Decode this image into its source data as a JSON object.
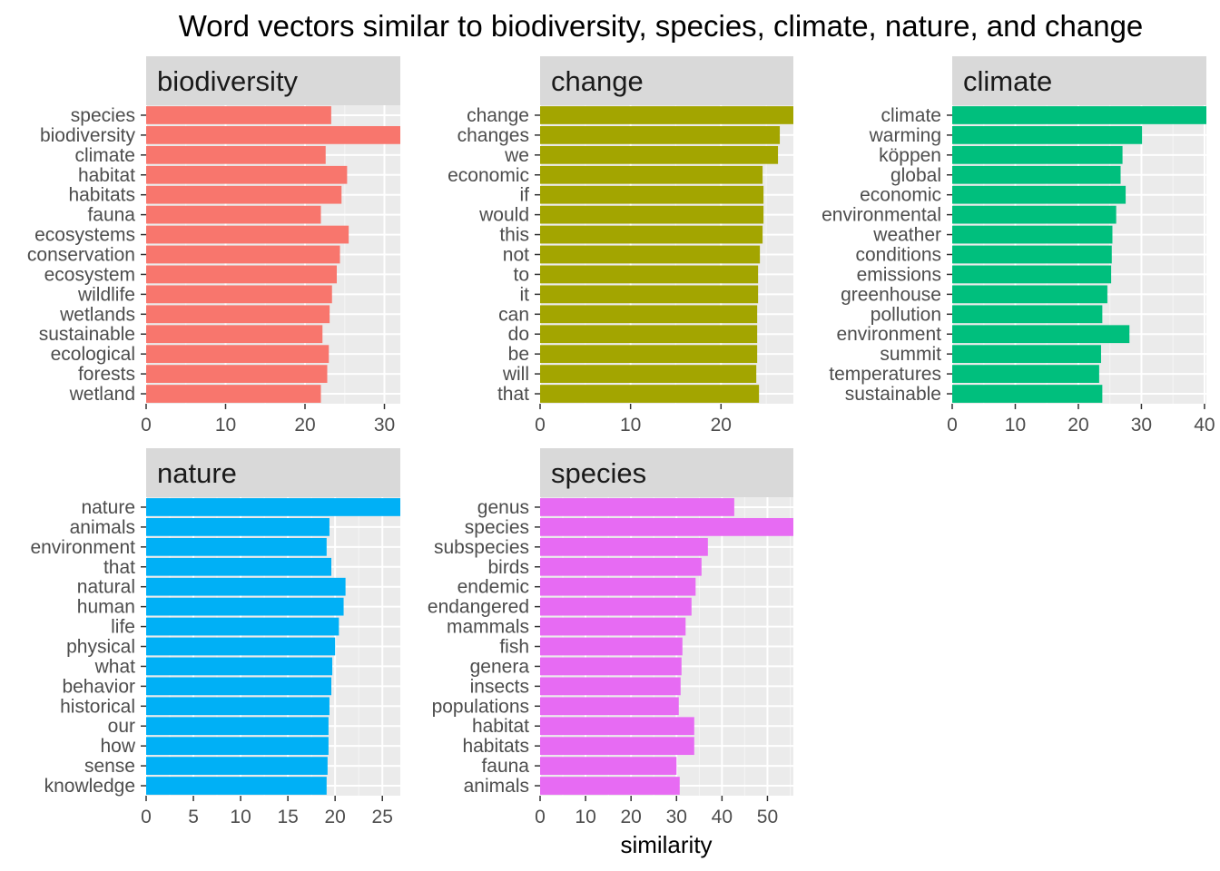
{
  "chart_data": {
    "type": "bar",
    "orientation": "horizontal",
    "title": "Word vectors similar to biodiversity, species, climate, nature, and change",
    "xlabel": "similarity",
    "ylabel": "",
    "grid": true,
    "panels": [
      {
        "name": "biodiversity",
        "color": "#F8766D",
        "xlim": [
          0,
          32
        ],
        "ticks": [
          0,
          10,
          20,
          30
        ],
        "categories": [
          "species",
          "biodiversity",
          "climate",
          "habitat",
          "habitats",
          "fauna",
          "ecosystems",
          "conservation",
          "ecosystem",
          "wildlife",
          "wetlands",
          "sustainable",
          "ecological",
          "forests",
          "wetland"
        ],
        "values": [
          23.3,
          32.0,
          22.6,
          25.3,
          24.6,
          22.0,
          25.5,
          24.4,
          24.0,
          23.4,
          23.1,
          22.2,
          23.0,
          22.8,
          22.0
        ]
      },
      {
        "name": "change",
        "color": "#A3A500",
        "xlim": [
          0,
          28
        ],
        "ticks": [
          0,
          10,
          20
        ],
        "categories": [
          "change",
          "changes",
          "we",
          "economic",
          "if",
          "would",
          "this",
          "not",
          "to",
          "it",
          "can",
          "do",
          "be",
          "will",
          "that"
        ],
        "values": [
          28.0,
          26.5,
          26.3,
          24.6,
          24.7,
          24.7,
          24.6,
          24.3,
          24.1,
          24.1,
          24.0,
          24.0,
          24.0,
          23.9,
          24.2
        ]
      },
      {
        "name": "climate",
        "color": "#00BF7D",
        "xlim": [
          0,
          40.3
        ],
        "ticks": [
          0,
          10,
          20,
          30,
          40
        ],
        "categories": [
          "climate",
          "warming",
          "köppen",
          "global",
          "economic",
          "environmental",
          "weather",
          "conditions",
          "emissions",
          "greenhouse",
          "pollution",
          "environment",
          "summit",
          "temperatures",
          "sustainable"
        ],
        "values": [
          40.3,
          30.1,
          27.0,
          26.7,
          27.5,
          26.0,
          25.4,
          25.3,
          25.2,
          24.6,
          23.8,
          28.1,
          23.6,
          23.3,
          23.8
        ]
      },
      {
        "name": "nature",
        "color": "#00B0F6",
        "xlim": [
          0,
          26.9
        ],
        "ticks": [
          0,
          5,
          10,
          15,
          20,
          25
        ],
        "categories": [
          "nature",
          "animals",
          "environment",
          "that",
          "natural",
          "human",
          "life",
          "physical",
          "what",
          "behavior",
          "historical",
          "our",
          "how",
          "sense",
          "knowledge"
        ],
        "values": [
          26.9,
          19.4,
          19.1,
          19.6,
          21.1,
          20.9,
          20.4,
          20.0,
          19.7,
          19.6,
          19.4,
          19.3,
          19.3,
          19.2,
          19.1
        ]
      },
      {
        "name": "species",
        "color": "#E76BF3",
        "xlim": [
          0,
          55.7
        ],
        "ticks": [
          0,
          10,
          20,
          30,
          40,
          50
        ],
        "categories": [
          "genus",
          "species",
          "subspecies",
          "birds",
          "endemic",
          "endangered",
          "mammals",
          "fish",
          "genera",
          "insects",
          "populations",
          "habitat",
          "habitats",
          "fauna",
          "animals"
        ],
        "values": [
          42.7,
          55.7,
          36.9,
          35.5,
          34.2,
          33.3,
          32.0,
          31.3,
          31.1,
          30.9,
          30.5,
          33.9,
          33.9,
          30.0,
          30.7
        ]
      }
    ]
  }
}
